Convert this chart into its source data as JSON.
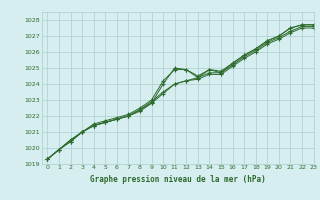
{
  "title": "Graphe pression niveau de la mer (hPa)",
  "background_color": "#d6eef0",
  "grid_color": "#aacccc",
  "line_color": "#2d6a2d",
  "xlim": [
    -0.5,
    23
  ],
  "ylim": [
    1019,
    1028.5
  ],
  "yticks": [
    1019,
    1020,
    1021,
    1022,
    1023,
    1024,
    1025,
    1026,
    1027,
    1028
  ],
  "xticks": [
    0,
    1,
    2,
    3,
    4,
    5,
    6,
    7,
    8,
    9,
    10,
    11,
    12,
    13,
    14,
    15,
    16,
    17,
    18,
    19,
    20,
    21,
    22,
    23
  ],
  "series": [
    [
      1019.3,
      1019.9,
      1020.5,
      1021.0,
      1021.5,
      1021.7,
      1021.9,
      1022.1,
      1022.5,
      1023.0,
      1024.2,
      1024.9,
      1024.9,
      1024.5,
      1024.9,
      1024.8,
      1025.3,
      1025.8,
      1026.2,
      1026.7,
      1027.0,
      1027.5,
      1027.7,
      1027.7
    ],
    [
      1019.3,
      1019.9,
      1020.5,
      1021.0,
      1021.4,
      1021.6,
      1021.8,
      1022.0,
      1022.4,
      1022.9,
      1023.5,
      1024.0,
      1024.2,
      1024.4,
      1024.7,
      1024.7,
      1025.2,
      1025.7,
      1026.1,
      1026.6,
      1026.9,
      1027.3,
      1027.6,
      1027.6
    ],
    [
      1019.3,
      1019.9,
      1020.4,
      1021.0,
      1021.4,
      1021.6,
      1021.8,
      1022.0,
      1022.4,
      1022.8,
      1023.4,
      1024.0,
      1024.2,
      1024.3,
      1024.6,
      1024.6,
      1025.1,
      1025.6,
      1026.0,
      1026.5,
      1026.8,
      1027.2,
      1027.5,
      1027.5
    ],
    [
      1019.3,
      1019.9,
      1020.4,
      1021.0,
      1021.4,
      1021.6,
      1021.8,
      1022.0,
      1022.3,
      1022.8,
      1024.0,
      1025.0,
      1024.9,
      1024.4,
      1024.9,
      1024.7,
      1025.3,
      1025.8,
      1026.2,
      1026.7,
      1027.0,
      1027.5,
      1027.7,
      1027.7
    ]
  ],
  "tick_fontsize": 4.5,
  "label_fontsize": 5.5,
  "linewidth": 0.7,
  "markersize": 3.0
}
